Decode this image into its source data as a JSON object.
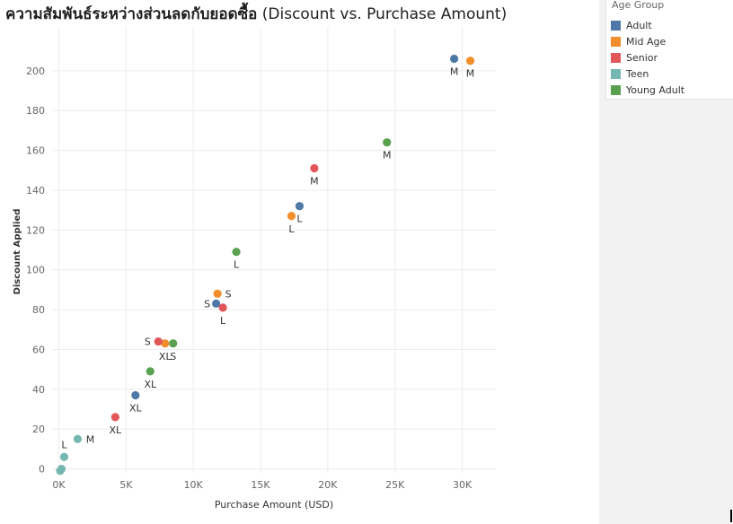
{
  "title": {
    "thai": "ความสัมพันธ์ระหว่างส่วนลดกับยอดซื้อ",
    "english": "(Discount vs. Purchase Amount)"
  },
  "legend": {
    "title": "Age Group",
    "items": [
      {
        "label": "Adult",
        "color": "#4e79a7"
      },
      {
        "label": "Mid Age",
        "color": "#f28e2b"
      },
      {
        "label": "Senior",
        "color": "#e15759"
      },
      {
        "label": "Teen",
        "color": "#76b7b2"
      },
      {
        "label": "Young Adult",
        "color": "#59a14f"
      }
    ]
  },
  "chart_data": {
    "type": "scatter",
    "title": "ความสัมพันธ์ระหว่างส่วนลดกับยอดซื้อ (Discount vs. Purchase Amount)",
    "xlabel": "Purchase Amount (USD)",
    "ylabel": "Discount Applied",
    "xlim": [
      -500,
      32500
    ],
    "ylim": [
      -2,
      222
    ],
    "xticks": [
      0,
      5000,
      10000,
      15000,
      20000,
      25000,
      30000
    ],
    "xtick_labels": [
      "0K",
      "5K",
      "10K",
      "15K",
      "20K",
      "25K",
      "30K"
    ],
    "yticks": [
      0,
      20,
      40,
      60,
      80,
      100,
      120,
      140,
      160,
      180,
      200
    ],
    "ytick_labels": [
      "0",
      "20",
      "40",
      "60",
      "80",
      "100",
      "120",
      "140",
      "160",
      "180",
      "200"
    ],
    "grid": true,
    "legend_position": "right",
    "series": [
      {
        "name": "Adult",
        "points": [
          {
            "x": 29400,
            "y": 206,
            "label": "M"
          },
          {
            "x": 17900,
            "y": 132,
            "label": "L"
          },
          {
            "x": 11700,
            "y": 83,
            "label": "S"
          },
          {
            "x": 5700,
            "y": 37,
            "label": "XL"
          }
        ]
      },
      {
        "name": "Mid Age",
        "points": [
          {
            "x": 30600,
            "y": 205,
            "label": "M"
          },
          {
            "x": 17300,
            "y": 127,
            "label": "L"
          },
          {
            "x": 11800,
            "y": 88,
            "label": "S"
          },
          {
            "x": 7900,
            "y": 63,
            "label": "XL"
          }
        ]
      },
      {
        "name": "Senior",
        "points": [
          {
            "x": 19000,
            "y": 151,
            "label": "M"
          },
          {
            "x": 12200,
            "y": 81,
            "label": "L"
          },
          {
            "x": 7400,
            "y": 64,
            "label": "S"
          },
          {
            "x": 4200,
            "y": 26,
            "label": "XL"
          }
        ]
      },
      {
        "name": "Teen",
        "points": [
          {
            "x": 1400,
            "y": 15,
            "label": "M"
          },
          {
            "x": 400,
            "y": 6,
            "label": "L"
          },
          {
            "x": 200,
            "y": 0,
            "label": ""
          },
          {
            "x": 100,
            "y": -1,
            "label": ""
          }
        ]
      },
      {
        "name": "Young Adult",
        "points": [
          {
            "x": 24400,
            "y": 164,
            "label": "M"
          },
          {
            "x": 13200,
            "y": 109,
            "label": "L"
          },
          {
            "x": 8500,
            "y": 63,
            "label": "S"
          },
          {
            "x": 6800,
            "y": 49,
            "label": "XL"
          }
        ]
      }
    ]
  }
}
